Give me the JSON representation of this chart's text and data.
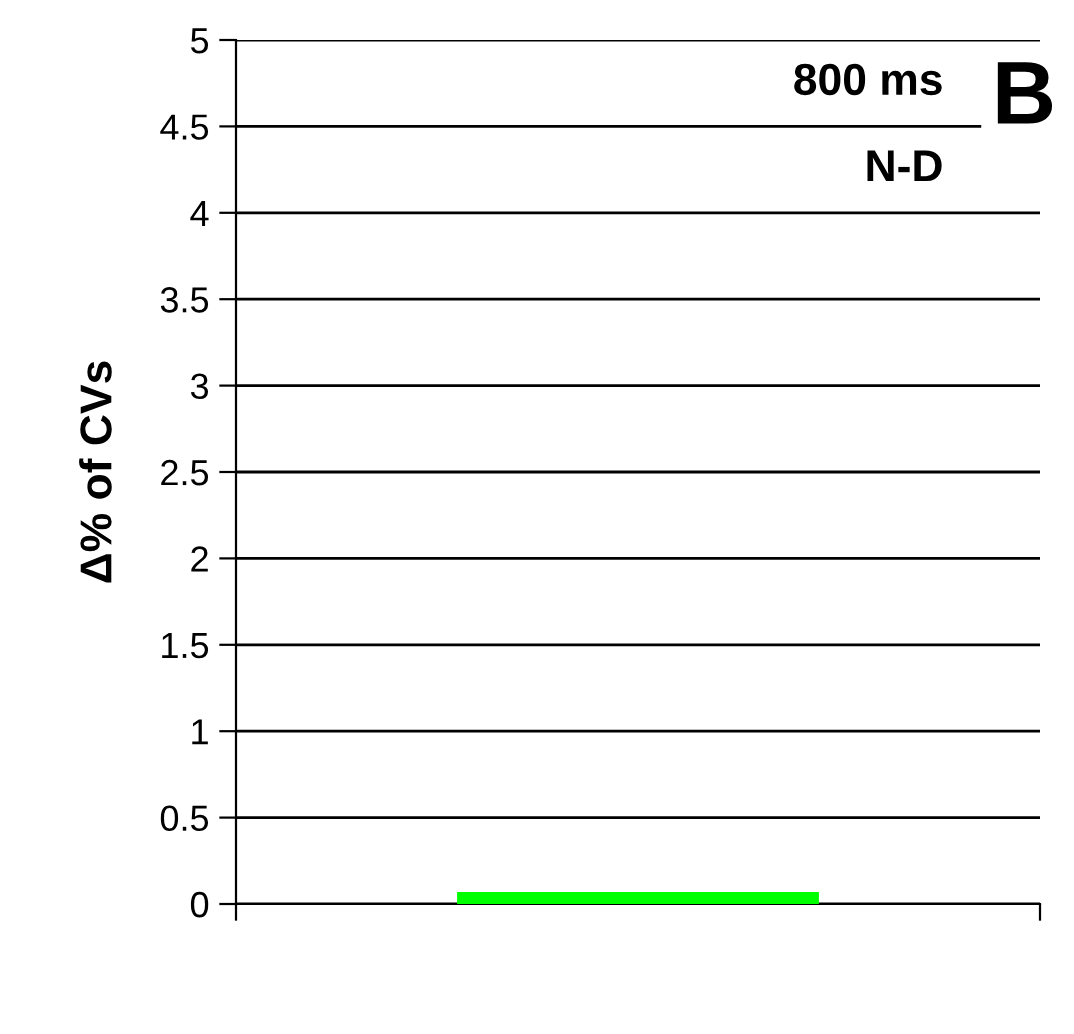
{
  "chart_data": {
    "type": "bar",
    "ylabel": "Δ% of CVs",
    "categories": [
      null
    ],
    "values": [
      0.07
    ],
    "color": "#00ff00",
    "ylim": [
      0,
      5
    ],
    "yticks": [
      0,
      0.5,
      1,
      1.5,
      2,
      2.5,
      3,
      3.5,
      4,
      4.5,
      5
    ],
    "grid": "y",
    "annotations": [
      "800 ms",
      "N-D",
      "B"
    ]
  }
}
